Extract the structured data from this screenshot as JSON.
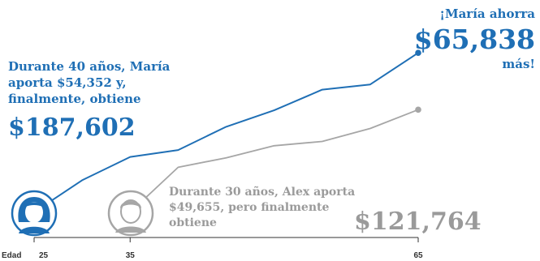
{
  "annotations": {
    "maria_note": "Durante 40 años, María aporta $54,352 y, finalmente, obtiene",
    "maria_total": "$187,602",
    "difference_lead": "¡María ahorra",
    "difference_value": "$65,838",
    "difference_tail": "más!",
    "alex_note": "Durante 30 años, Alex aporta $49,655, pero finalmente obtiene",
    "alex_total": "$121,764"
  },
  "avatars": [
    {
      "name": "maria",
      "icon": "woman-avatar-icon",
      "age": 25
    },
    {
      "name": "alex",
      "icon": "man-avatar-icon",
      "age": 35
    }
  ],
  "colors": {
    "maria": "#1f6fb5",
    "alex": "#a6a6a6",
    "axis": "#333333"
  },
  "chart_data": {
    "type": "line",
    "title": "",
    "xlabel": "Edad",
    "ylabel": "",
    "xlim": [
      25,
      65
    ],
    "ylim": [
      0,
      200000
    ],
    "xticks": [
      25,
      35,
      65
    ],
    "grid": false,
    "legend": "none",
    "series": [
      {
        "name": "María",
        "x": [
          25,
          30,
          35,
          40,
          45,
          50,
          55,
          60,
          65
        ],
        "values": [
          3000,
          40000,
          67000,
          75000,
          102000,
          121000,
          145000,
          151000,
          187602
        ]
      },
      {
        "name": "Alex",
        "x": [
          35,
          40,
          45,
          50,
          55,
          60,
          65
        ],
        "values": [
          3000,
          55000,
          66000,
          80000,
          85000,
          100000,
          121764
        ]
      }
    ]
  }
}
